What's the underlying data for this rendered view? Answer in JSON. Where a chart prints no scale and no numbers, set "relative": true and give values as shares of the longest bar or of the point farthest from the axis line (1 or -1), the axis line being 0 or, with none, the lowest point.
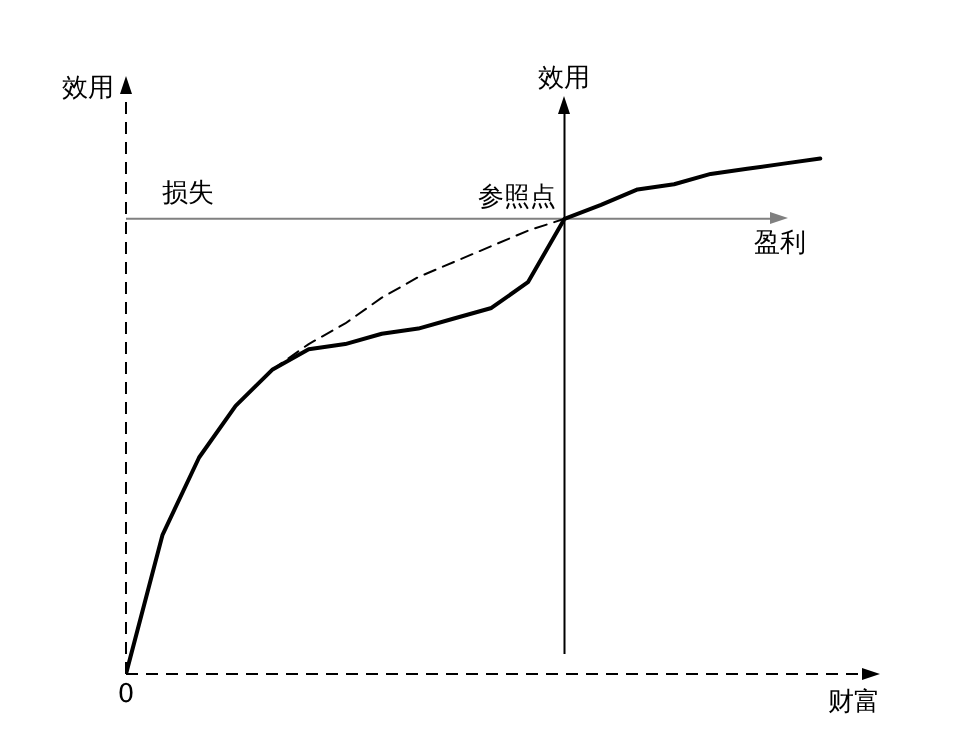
{
  "chart_data": {
    "type": "line",
    "relative": true,
    "xlabel": "财富",
    "ylabel": "效用",
    "legend": false,
    "marker": "none",
    "categories": [
      null,
      null,
      null,
      null,
      null,
      null,
      null,
      null,
      null,
      null,
      null,
      null,
      null,
      null,
      null,
      null,
      null,
      null,
      null,
      null
    ],
    "series": [
      {
        "color": "#000000",
        "line_style": "solid",
        "values": [
          0,
          0.27,
          0.42,
          0.52,
          0.59,
          0.63,
          0.64,
          0.66,
          0.67,
          0.69,
          0.71,
          0.76,
          0.883,
          0.91,
          0.94,
          0.95,
          0.97,
          0.98,
          0.99,
          1
        ]
      },
      {
        "color": "#000000",
        "line_style": "dashed",
        "values": [
          null,
          null,
          null,
          null,
          0.59,
          0.64,
          0.68,
          0.73,
          0.77,
          0.8,
          0.83,
          0.86,
          0.883,
          null,
          null,
          null,
          null,
          null,
          null,
          null
        ]
      }
    ],
    "ref_lines": [
      {
        "axis": "y",
        "value": 0.883,
        "color": "#808080"
      }
    ],
    "annotations": [
      "0",
      "损失",
      {
        "text": "参照点",
        "y": 0.883
      },
      "效用",
      "盈利"
    ]
  }
}
